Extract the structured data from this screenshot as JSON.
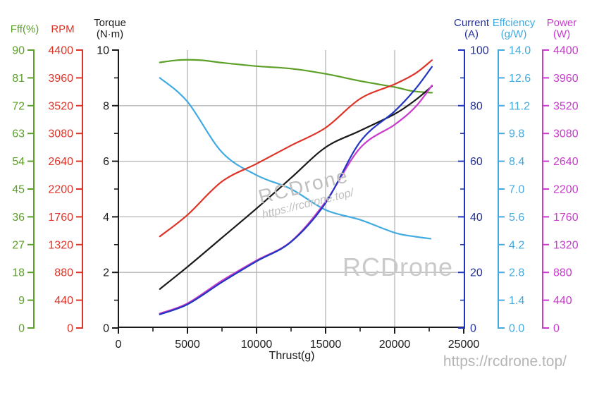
{
  "watermarks": {
    "center_line1": "RCDrone",
    "center_line2": "https://rcdrone.top/",
    "plot_bottom_right": "RCDrone",
    "page_bottom_right": "https://rcdrone.top/"
  },
  "chart_data": {
    "type": "line",
    "title": "",
    "xlabel": "Thrust(g)",
    "grid": "on",
    "x_axis": {
      "min": 0,
      "max": 25000,
      "major_ticks": [
        0,
        5000,
        10000,
        15000,
        20000,
        25000
      ],
      "major_tick_labels": [
        "0",
        "5000",
        "10000",
        "15000",
        "20000",
        "25000"
      ],
      "minor_ticks": [
        2500,
        7500,
        12500,
        17500,
        22500
      ],
      "grid_values": [
        5000,
        10000,
        15000,
        20000
      ]
    },
    "y_grid_values_torque_units": [
      2,
      4,
      6,
      8
    ],
    "axes": [
      {
        "id": "fff",
        "title1": "Fff(%)",
        "title2": null,
        "color": "#5da028",
        "min": 0,
        "max": 90,
        "tick_labels": [
          "90",
          "81",
          "72",
          "63",
          "54",
          "45",
          "36",
          "27",
          "18",
          "9",
          "0"
        ]
      },
      {
        "id": "rpm",
        "title1": "RPM",
        "title2": null,
        "color": "#dd3427",
        "min": 0,
        "max": 4400,
        "tick_labels": [
          "4400",
          "3960",
          "3520",
          "3080",
          "2640",
          "2200",
          "1760",
          "1320",
          "880",
          "440",
          "0"
        ]
      },
      {
        "id": "torque",
        "title1": "Torque",
        "title2": "(N·m)",
        "color": "#1a1a1a",
        "min": 0,
        "max": 10,
        "tick_labels": [
          "10",
          "8",
          "6",
          "4",
          "2",
          "0"
        ],
        "minor_ticks_between": true
      },
      {
        "id": "current",
        "title1": "Current",
        "title2": "(A)",
        "color": "#24309c",
        "line_color": "#2136c0",
        "min": 0,
        "max": 100,
        "tick_labels": [
          "100",
          "80",
          "60",
          "40",
          "20",
          "0"
        ],
        "minor_ticks_between": true
      },
      {
        "id": "eff",
        "title1": "Effciency",
        "title2": "(g/W)",
        "color": "#41abe1",
        "min": 0,
        "max": 14,
        "tick_labels": [
          "14.0",
          "12.6",
          "11.2",
          "9.8",
          "8.4",
          "7.0",
          "5.6",
          "4.2",
          "2.8",
          "1.4",
          "0.0"
        ]
      },
      {
        "id": "power",
        "title1": "Power",
        "title2": "(W)",
        "color": "#c83bcd",
        "min": 0,
        "max": 4400,
        "tick_labels": [
          "4400",
          "3960",
          "3520",
          "3080",
          "2640",
          "2200",
          "1760",
          "1320",
          "880",
          "440",
          "0"
        ]
      }
    ],
    "series": [
      {
        "name": "Fff(%)",
        "axis": "fff",
        "color": "#5da028",
        "points": [
          [
            3000,
            86.0
          ],
          [
            4500,
            86.8
          ],
          [
            6000,
            86.7
          ],
          [
            7500,
            85.9
          ],
          [
            10000,
            84.8
          ],
          [
            12500,
            84.0
          ],
          [
            15000,
            82.3
          ],
          [
            17500,
            80.0
          ],
          [
            20000,
            78.0
          ],
          [
            21200,
            76.8
          ],
          [
            22300,
            76.3
          ],
          [
            22700,
            76.2
          ]
        ]
      },
      {
        "name": "Efficiency(g/W)",
        "axis": "eff",
        "color": "#41abe1",
        "points": [
          [
            3000,
            12.6
          ],
          [
            5000,
            11.4
          ],
          [
            7500,
            8.85
          ],
          [
            10000,
            7.7
          ],
          [
            12500,
            7.0
          ],
          [
            15000,
            5.95
          ],
          [
            17500,
            5.45
          ],
          [
            20000,
            4.8
          ],
          [
            21500,
            4.6
          ],
          [
            22600,
            4.5
          ]
        ]
      },
      {
        "name": "RPM",
        "axis": "rpm",
        "color": "#dd3427",
        "points": [
          [
            3000,
            1450
          ],
          [
            5000,
            1790
          ],
          [
            7500,
            2320
          ],
          [
            10000,
            2600
          ],
          [
            12500,
            2890
          ],
          [
            15000,
            3170
          ],
          [
            17500,
            3630
          ],
          [
            20000,
            3860
          ],
          [
            21500,
            4030
          ],
          [
            22700,
            4240
          ]
        ]
      },
      {
        "name": "Torque(N·m)",
        "axis": "torque",
        "color": "#1a1a1a",
        "points": [
          [
            3000,
            1.4
          ],
          [
            5000,
            2.2
          ],
          [
            7500,
            3.25
          ],
          [
            10000,
            4.3
          ],
          [
            12500,
            5.4
          ],
          [
            15000,
            6.5
          ],
          [
            17500,
            7.1
          ],
          [
            20000,
            7.7
          ],
          [
            21500,
            8.2
          ],
          [
            22700,
            8.7
          ]
        ]
      },
      {
        "name": "Power(W)",
        "axis": "power",
        "color": "#c83bcd",
        "points": [
          [
            3000,
            230
          ],
          [
            5000,
            390
          ],
          [
            7500,
            750
          ],
          [
            10000,
            1070
          ],
          [
            12500,
            1370
          ],
          [
            15000,
            2000
          ],
          [
            17500,
            2850
          ],
          [
            20000,
            3220
          ],
          [
            21500,
            3500
          ],
          [
            22700,
            3840
          ]
        ]
      },
      {
        "name": "Current(A)",
        "axis": "current",
        "color": "#2136c0",
        "points": [
          [
            3000,
            4.9
          ],
          [
            5000,
            8.5
          ],
          [
            7500,
            16.5
          ],
          [
            10000,
            24
          ],
          [
            12500,
            31
          ],
          [
            15000,
            45
          ],
          [
            17500,
            67
          ],
          [
            20000,
            78
          ],
          [
            21500,
            86
          ],
          [
            22700,
            94
          ]
        ]
      }
    ]
  }
}
